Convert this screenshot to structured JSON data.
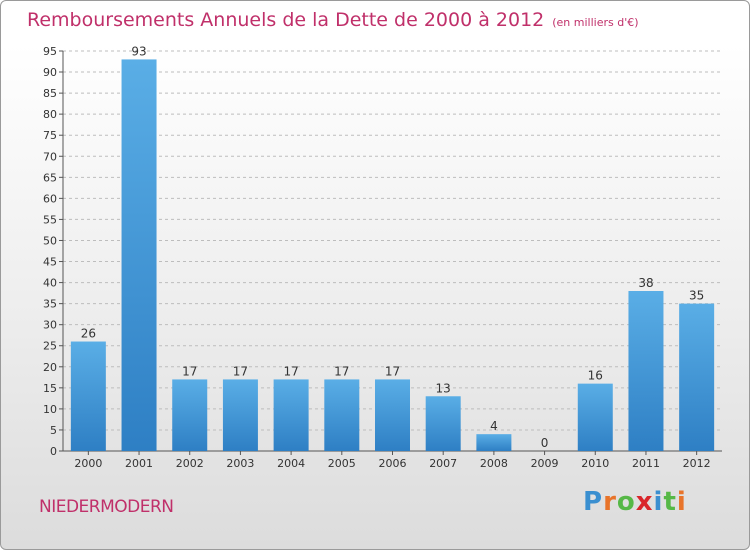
{
  "title": "Remboursements Annuels de la Dette de 2000 à 2012",
  "subtitle": "(en milliers d'€)",
  "commune": "NIEDERMODERN",
  "logo": {
    "letters": [
      "P",
      "r",
      "o",
      "x",
      "i",
      "t",
      "i"
    ],
    "colors": [
      "#3a8fd0",
      "#e8742a",
      "#56b847",
      "#d9262b",
      "#3a8fd0",
      "#56b847",
      "#e8742a"
    ]
  },
  "colors": {
    "title": "#c0306a",
    "bar_top": "#5aaee6",
    "bar_bottom": "#2e7fc4",
    "grid": "#bdbdbd"
  },
  "chart_data": {
    "type": "bar",
    "categories": [
      "2000",
      "2001",
      "2002",
      "2003",
      "2004",
      "2005",
      "2006",
      "2007",
      "2008",
      "2009",
      "2010",
      "2011",
      "2012"
    ],
    "values": [
      26,
      93,
      17,
      17,
      17,
      17,
      17,
      13,
      4,
      0,
      16,
      38,
      35
    ],
    "ylim": [
      0,
      95
    ],
    "yticks": [
      0,
      5,
      10,
      15,
      20,
      25,
      30,
      35,
      40,
      45,
      50,
      55,
      60,
      65,
      70,
      75,
      80,
      85,
      90,
      95
    ],
    "title": "Remboursements Annuels de la Dette de 2000 à 2012",
    "xlabel": "",
    "ylabel": "",
    "grid": true
  }
}
